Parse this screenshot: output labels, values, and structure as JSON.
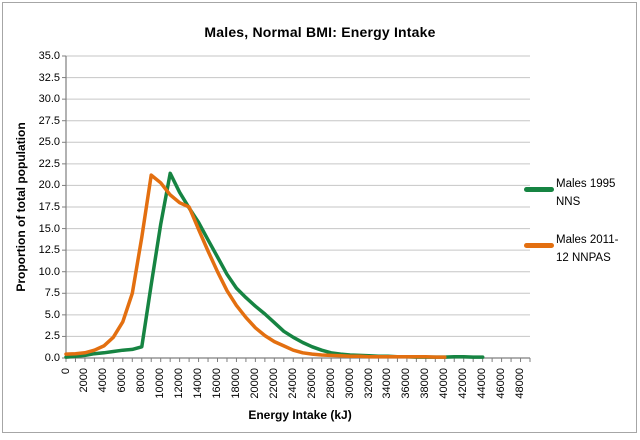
{
  "chart_data": {
    "type": "line",
    "title": "Males, Normal BMI: Energy Intake",
    "xlabel": "Energy Intake (kJ)",
    "ylabel": "Proportion of total population",
    "ylim": [
      0,
      35.0
    ],
    "ytick_step": 2.5,
    "ytick_labels": [
      "0.0",
      "2.5",
      "5.0",
      "7.5",
      "10.0",
      "12.5",
      "15.0",
      "17.5",
      "20.0",
      "22.5",
      "25.0",
      "27.5",
      "30.0",
      "32.5",
      "35.0"
    ],
    "xtick_labels": [
      "0",
      "2000",
      "4000",
      "6000",
      "8000",
      "10000",
      "12000",
      "14000",
      "16000",
      "18000",
      "20000",
      "22000",
      "24000",
      "26000",
      "28000",
      "30000",
      "32000",
      "34000",
      "36000",
      "38000",
      "40000",
      "42000",
      "44000",
      "46000",
      "48000"
    ],
    "xtick_label_step_kj": 2000,
    "x_axis_span_kj": 49000,
    "grid": true,
    "legend_position": "right",
    "axis_color": "#7f7f7f",
    "gridline_color": "#c6c6c6",
    "series": [
      {
        "name": "Males 1995 NNS",
        "legend_lines": "Males 1995\nNNS",
        "color": "#168442",
        "x_start_kj": 0,
        "x_step_kj": 1000,
        "x_end_kj": 44000,
        "values": [
          0.1,
          0.2,
          0.3,
          0.5,
          0.6,
          0.75,
          0.9,
          1.0,
          1.3,
          8.5,
          15.5,
          21.4,
          19.2,
          17.4,
          15.7,
          13.7,
          11.7,
          9.7,
          8.1,
          7.0,
          6.0,
          5.1,
          4.1,
          3.1,
          2.4,
          1.8,
          1.3,
          0.9,
          0.6,
          0.45,
          0.35,
          0.3,
          0.25,
          0.2,
          0.2,
          0.15,
          0.15,
          0.1,
          0.1,
          0.1,
          0.1,
          0.15,
          0.15,
          0.1,
          0.1
        ]
      },
      {
        "name": "Males 2011-12 NNPAS",
        "legend_lines": "Males 2011-\n12 NNPAS",
        "color": "#e36f10",
        "x_start_kj": 0,
        "x_step_kj": 1000,
        "x_end_kj": 40000,
        "values": [
          0.45,
          0.5,
          0.6,
          0.9,
          1.4,
          2.4,
          4.2,
          7.5,
          14.0,
          21.2,
          20.3,
          18.9,
          18.0,
          17.5,
          14.9,
          12.4,
          10.0,
          7.8,
          6.1,
          4.7,
          3.5,
          2.6,
          1.9,
          1.4,
          0.9,
          0.6,
          0.45,
          0.35,
          0.3,
          0.25,
          0.2,
          0.2,
          0.15,
          0.15,
          0.15,
          0.15,
          0.15,
          0.15,
          0.15,
          0.1,
          0.1
        ]
      }
    ]
  }
}
